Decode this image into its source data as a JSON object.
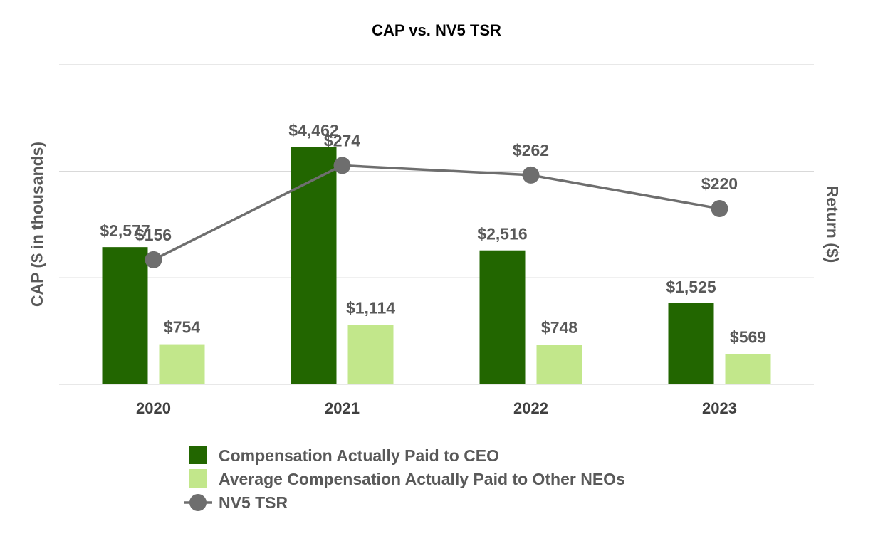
{
  "chart_data": {
    "type": "bar",
    "title": "CAP vs. NV5 TSR",
    "ylabel": "CAP ($ in thousands)",
    "y2label": "Return ($)",
    "categories": [
      "2020",
      "2021",
      "2022",
      "2023"
    ],
    "ylim": [
      0,
      6000
    ],
    "y2lim": [
      0,
      400
    ],
    "grid": true,
    "series": [
      {
        "name": "Compensation Actually Paid to CEO",
        "type": "bar",
        "axis": "left",
        "color": "#226600",
        "values": [
          2577,
          4462,
          2516,
          1525
        ],
        "labels": [
          "$2,577",
          "$4,462",
          "$2,516",
          "$1,525"
        ]
      },
      {
        "name": "Average Compensation Actually Paid to Other NEOs",
        "type": "bar",
        "axis": "left",
        "color": "#c2e78b",
        "values": [
          754,
          1114,
          748,
          569
        ],
        "labels": [
          "$754",
          "$1,114",
          "$748",
          "$569"
        ]
      },
      {
        "name": "NV5 TSR",
        "type": "line",
        "axis": "right",
        "color": "#6e6e6e",
        "values": [
          156,
          274,
          262,
          220
        ],
        "labels": [
          "$156",
          "$274",
          "$262",
          "$220"
        ]
      }
    ],
    "legend_position": "bottom"
  }
}
